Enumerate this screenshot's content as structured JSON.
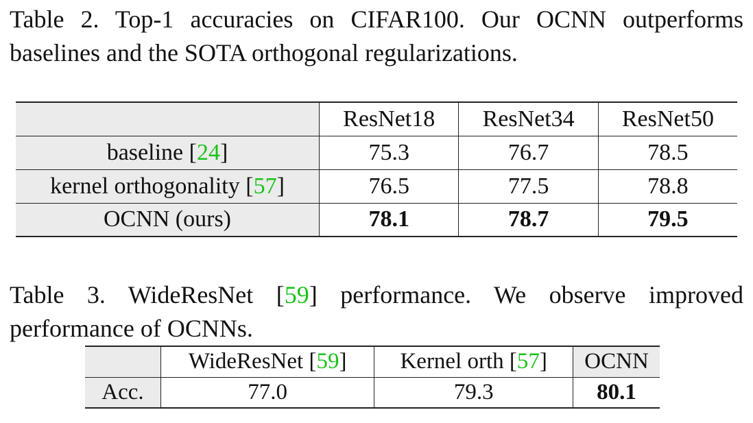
{
  "table2": {
    "caption_prefix": "Table 2. Top-1 accuracies on CIFAR100. Our OCNN outperforms baselines and the SOTA orthogonal regularizations.",
    "columns": [
      "ResNet18",
      "ResNet34",
      "ResNet50"
    ],
    "rows": [
      {
        "label": "baseline [",
        "cite": "24",
        "label_suffix": "]",
        "values": [
          "75.3",
          "76.7",
          "78.5"
        ]
      },
      {
        "label": "kernel orthogonality [",
        "cite": "57",
        "label_suffix": "]",
        "values": [
          "76.5",
          "77.5",
          "78.8"
        ]
      },
      {
        "label": "OCNN (ours)",
        "cite": "",
        "label_suffix": "",
        "values": [
          "78.1",
          "78.7",
          "79.5"
        ]
      }
    ]
  },
  "table3": {
    "caption_a": "Table 3. WideResNet [",
    "caption_cite": "59",
    "caption_b": "] performance.  We observe improved performance of OCNNs.",
    "columns": [
      {
        "label": "WideResNet [",
        "cite": "59",
        "suffix": "]"
      },
      {
        "label": "Kernel orth [",
        "cite": "57",
        "suffix": "]"
      },
      {
        "label": "OCNN",
        "cite": "",
        "suffix": ""
      }
    ],
    "row_label": "Acc.",
    "values": [
      "77.0",
      "79.3",
      "80.1"
    ]
  },
  "colors": {
    "citation": "#19c219",
    "header_shade": "#ebebeb"
  }
}
